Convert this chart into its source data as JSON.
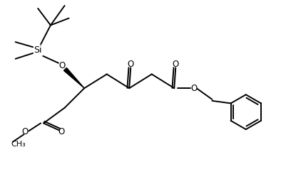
{
  "bg_color": "#ffffff",
  "line_color": "#000000",
  "line_width": 1.4,
  "font_size": 8.5,
  "figsize": [
    3.94,
    2.66
  ],
  "dpi": 100,
  "xlim": [
    0,
    10
  ],
  "ylim": [
    0,
    6.75
  ]
}
